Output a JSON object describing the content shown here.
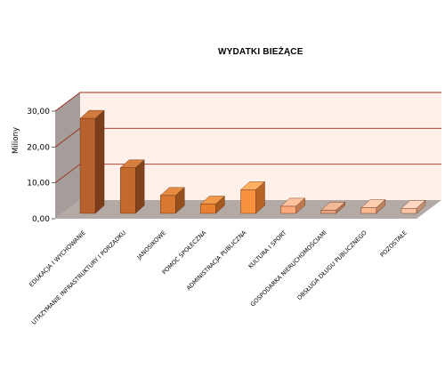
{
  "chart_data": {
    "type": "bar",
    "title": "WYDATKI BIEŻĄCE",
    "ylabel": "Miliony",
    "ylim": [
      0,
      30
    ],
    "yticks": [
      "0,00",
      "10,00",
      "20,00",
      "30,00"
    ],
    "grid": true,
    "categories": [
      "EDUKACJA  I  WYCHOWANIE",
      "UTRZYMANIE  INFRASTRUKTURY  I  PORZĄDKU",
      "JANOSIKOWE",
      "POMOC  SPOŁECZNA",
      "ADMINISTRACJA  PUBLICZNA",
      "KULTURA  I  SPORT",
      "GOSPODARKA  NIERUCHOMOŚCIAMI",
      "OBSŁUGA  DŁUGU  PUBLICZNEGO",
      "POZOSTAŁE"
    ],
    "values": [
      26.5,
      12.7,
      5.0,
      2.6,
      6.6,
      2.0,
      0.9,
      1.6,
      1.4
    ],
    "colors": {
      "wall_back": "#fff1e9",
      "wall_side": "#a69d9a",
      "floor": "#b3aaa6",
      "gridline": "#9a2d1f",
      "bar_fronts": [
        "#b8612c",
        "#c26a2e",
        "#d9762f",
        "#e9802f",
        "#f7913d",
        "#fba97a",
        "#e8a37f",
        "#fbb992",
        "#fbc4a7"
      ],
      "bar_tops": [
        "#d07a3e",
        "#d77f40",
        "#e68a40",
        "#f29a4c",
        "#ffb061",
        "#ffc39e",
        "#f2b996",
        "#ffcfb0",
        "#ffd7c2"
      ],
      "bar_sides": [
        "#7a3e1a",
        "#80431b",
        "#93501e",
        "#a5581f",
        "#b86427",
        "#c07a52",
        "#b07656",
        "#bf8462",
        "#c48f73"
      ]
    }
  }
}
